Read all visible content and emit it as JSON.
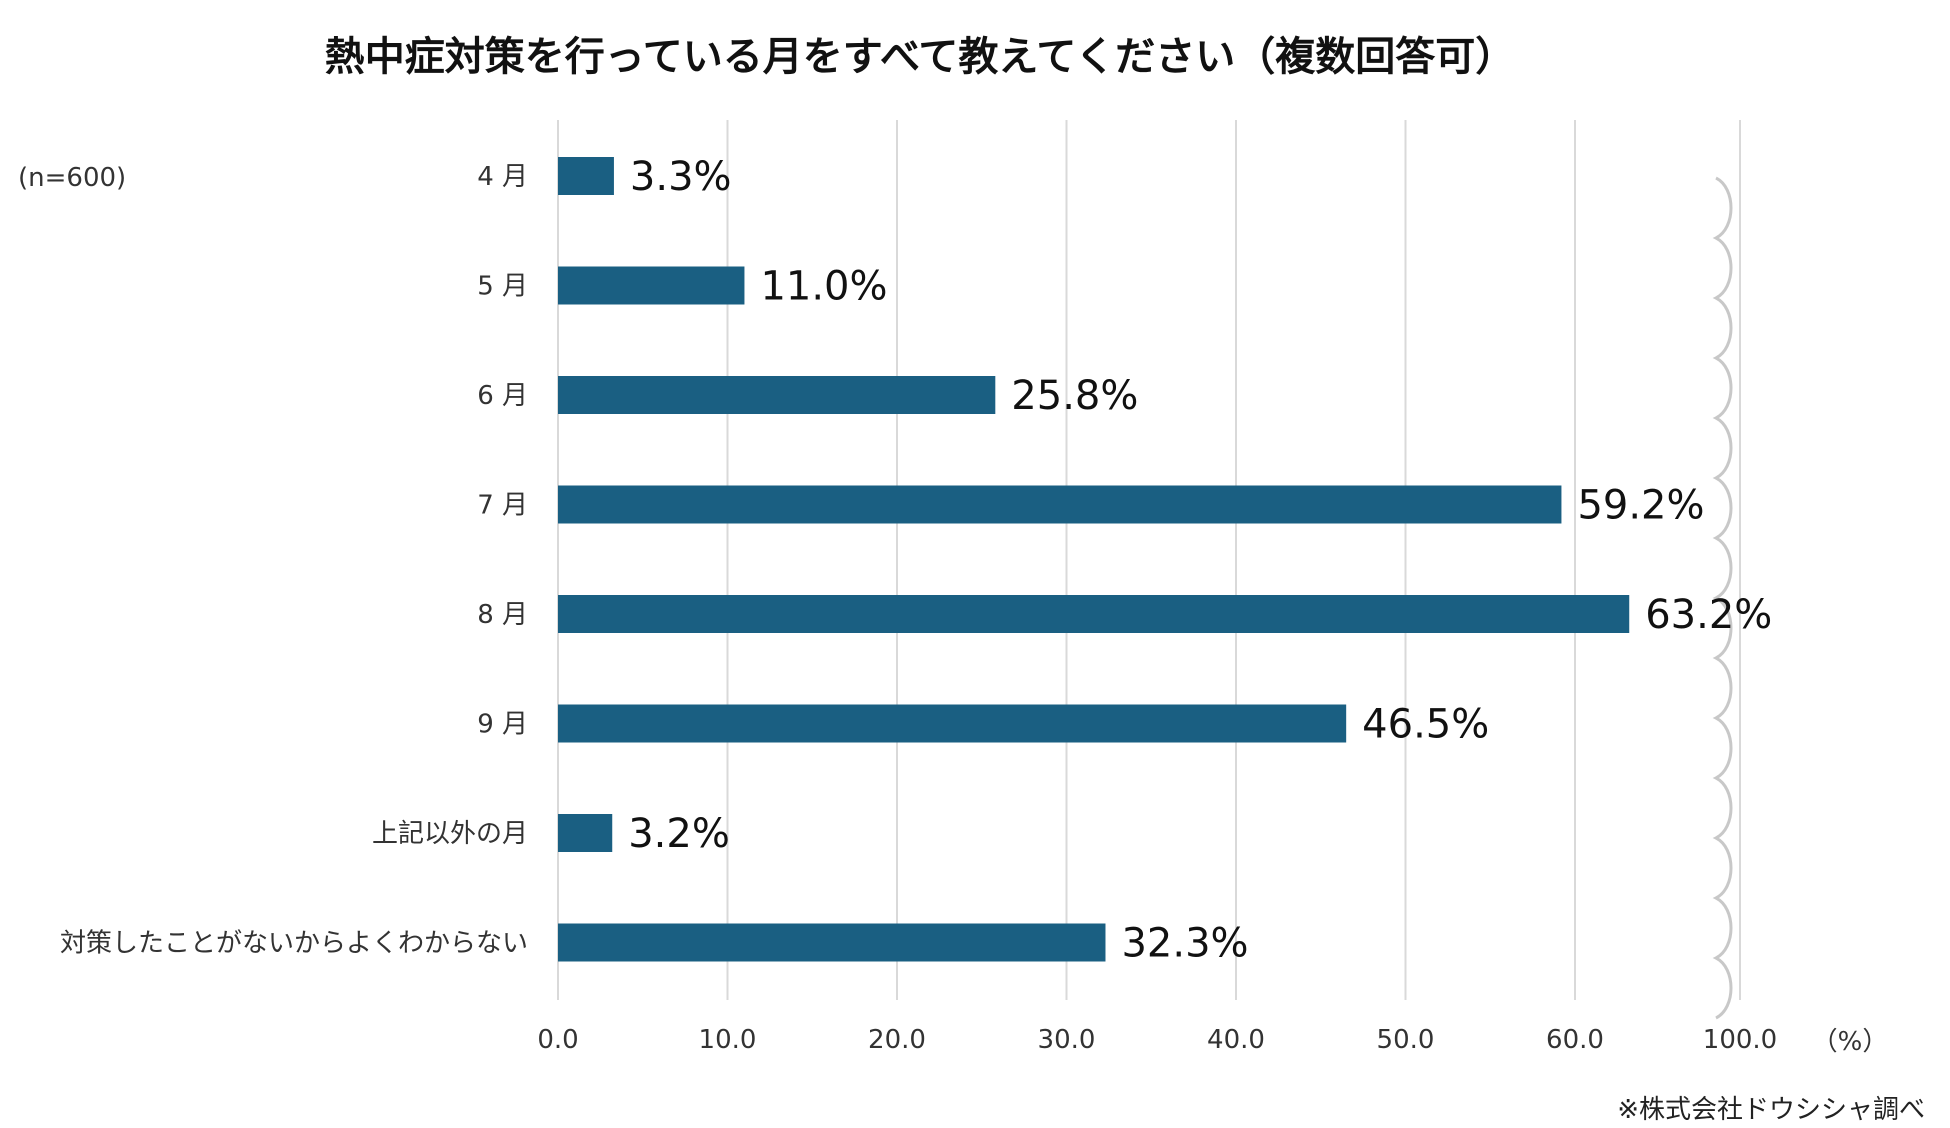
{
  "chart_data": {
    "type": "bar",
    "orientation": "horizontal",
    "title": "熱中症対策を行っている月をすべて教えてください（複数回答可）",
    "sample_note": "(n=600)",
    "unit_label": "（%）",
    "source": "※株式会社ドウシシャ調べ",
    "categories": [
      "4 月",
      "5 月",
      "6 月",
      "7 月",
      "8 月",
      "9 月",
      "上記以外の月",
      "対策したことがないからよくわからない"
    ],
    "values": [
      3.3,
      11.0,
      25.8,
      59.2,
      63.2,
      46.5,
      3.2,
      32.3
    ],
    "value_labels": [
      "3.3%",
      "11.0%",
      "25.8%",
      "59.2%",
      "63.2%",
      "46.5%",
      "3.2%",
      "32.3%"
    ],
    "x_ticks": [
      "0.0",
      "10.0",
      "20.0",
      "30.0",
      "40.0",
      "50.0",
      "60.0",
      "100.0"
    ],
    "xlim": [
      0,
      100
    ],
    "axis_break": "between 60.0 and 100.0",
    "grid": true,
    "colors": {
      "bar": "#1a5f82",
      "grid": "#d9d9d9",
      "break": "#c8c8c8"
    }
  }
}
